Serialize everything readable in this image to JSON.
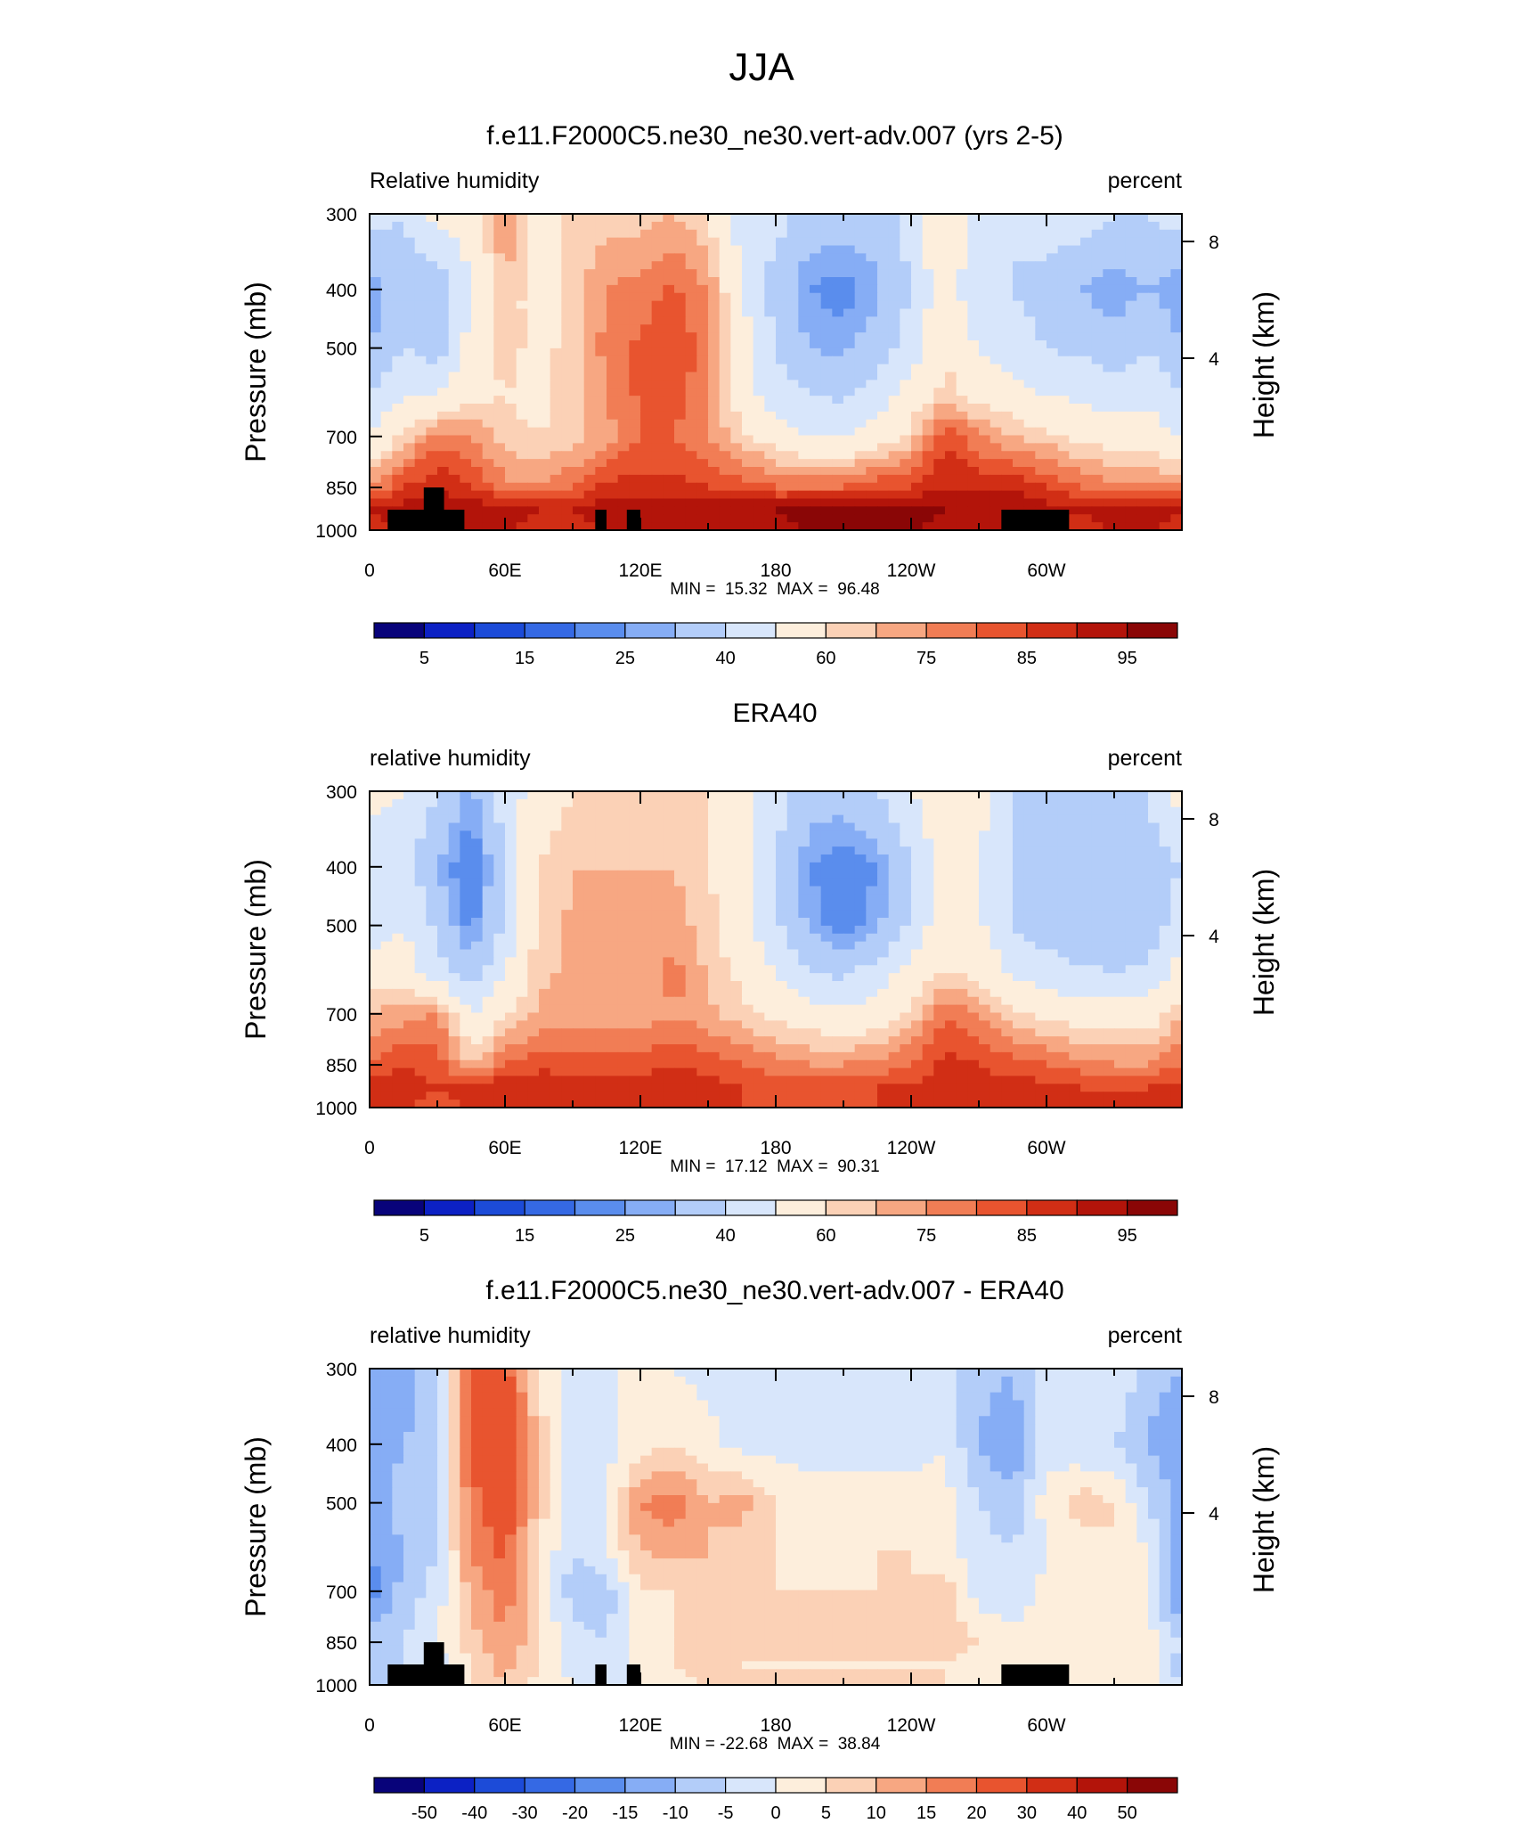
{
  "figure": {
    "title": "JJA"
  },
  "palettes": {
    "abs": [
      "#08037a",
      "#0c21c4",
      "#1c4bd8",
      "#3569e4",
      "#5a8ded",
      "#86adf5",
      "#b3cdf9",
      "#d8e6fb",
      "#fdeedc",
      "#fbd1b6",
      "#f7a782",
      "#f17d55",
      "#e8542f",
      "#d12e15",
      "#b3140a",
      "#8a0606"
    ],
    "diff": [
      "#08037a",
      "#0c21c4",
      "#1c4bd8",
      "#3569e4",
      "#5a8ded",
      "#86adf5",
      "#b3cdf9",
      "#d8e6fb",
      "#fdeedc",
      "#fbd1b6",
      "#f7a782",
      "#f17d55",
      "#e8542f",
      "#d12e15",
      "#b3140a",
      "#8a0606"
    ]
  },
  "chart_data": [
    {
      "type": "heatmap",
      "title": "f.e11.F2000C5.ne30_ne30.vert-adv.007 (yrs 2-5)",
      "left_label": "Relative humidity",
      "right_label": "percent",
      "ylabel": "Pressure (mb)",
      "y2label": "Height (km)",
      "ylim": [
        1000,
        300
      ],
      "y_ticks": [
        "300",
        "400",
        "500",
        "700",
        "850",
        "1000"
      ],
      "y_tick_values": [
        300,
        400,
        500,
        700,
        850,
        1000
      ],
      "y2_ticks": [
        "8",
        "4"
      ],
      "y2_tick_values_km": [
        8,
        4
      ],
      "x_ticks": [
        "0",
        "60E",
        "120E",
        "180",
        "120W",
        "60W"
      ],
      "x_tick_values": [
        0,
        60,
        120,
        180,
        240,
        300
      ],
      "xlim": [
        0,
        360
      ],
      "stats": "MIN =  15.32  MAX =  96.48",
      "min": 15.32,
      "max": 96.48,
      "colorbar_labels": [
        "5",
        "15",
        "25",
        "40",
        "60",
        "75",
        "85",
        "95"
      ],
      "levels": [
        5,
        10,
        15,
        20,
        25,
        30,
        40,
        50,
        60,
        65,
        70,
        75,
        80,
        85,
        90,
        95
      ],
      "palette": "abs",
      "has_topography": true,
      "grid_lons": [
        0,
        15,
        30,
        45,
        60,
        75,
        90,
        105,
        120,
        135,
        150,
        165,
        180,
        195,
        210,
        225,
        240,
        255,
        270,
        285,
        300,
        315,
        330,
        345,
        360
      ],
      "grid_levels": [
        300,
        400,
        500,
        600,
        700,
        850,
        925,
        1000
      ],
      "values": [
        [
          45,
          40,
          55,
          55,
          70,
          55,
          62,
          62,
          62,
          65,
          60,
          45,
          45,
          35,
          35,
          35,
          45,
          60,
          45,
          40,
          48,
          45,
          40,
          40,
          45
        ],
        [
          25,
          35,
          30,
          50,
          65,
          55,
          62,
          70,
          72,
          76,
          70,
          50,
          35,
          25,
          22,
          28,
          40,
          58,
          40,
          40,
          35,
          30,
          25,
          30,
          25
        ],
        [
          30,
          40,
          35,
          55,
          62,
          58,
          62,
          72,
          76,
          80,
          72,
          55,
          40,
          30,
          28,
          35,
          45,
          60,
          50,
          45,
          40,
          38,
          35,
          40,
          30
        ],
        [
          40,
          50,
          50,
          58,
          60,
          58,
          62,
          70,
          76,
          78,
          70,
          55,
          45,
          40,
          38,
          45,
          55,
          62,
          58,
          55,
          50,
          48,
          45,
          48,
          40
        ],
        [
          50,
          62,
          72,
          70,
          62,
          60,
          62,
          68,
          75,
          75,
          70,
          62,
          55,
          50,
          50,
          55,
          62,
          80,
          70,
          65,
          62,
          58,
          55,
          55,
          50
        ],
        [
          70,
          80,
          85,
          80,
          72,
          70,
          75,
          82,
          82,
          82,
          80,
          78,
          75,
          75,
          75,
          80,
          80,
          85,
          85,
          85,
          80,
          75,
          72,
          72,
          70
        ],
        [
          85,
          88,
          90,
          90,
          88,
          85,
          85,
          88,
          90,
          90,
          90,
          90,
          90,
          92,
          92,
          92,
          92,
          90,
          88,
          88,
          88,
          85,
          88,
          88,
          85
        ],
        [
          82,
          85,
          88,
          88,
          85,
          82,
          82,
          85,
          88,
          88,
          88,
          88,
          88,
          90,
          90,
          90,
          90,
          88,
          85,
          85,
          85,
          82,
          85,
          85,
          82
        ]
      ]
    },
    {
      "type": "heatmap",
      "title": "ERA40",
      "left_label": "relative humidity",
      "right_label": "percent",
      "ylabel": "Pressure (mb)",
      "y2label": "Height (km)",
      "ylim": [
        1000,
        300
      ],
      "y_ticks": [
        "300",
        "400",
        "500",
        "700",
        "850",
        "1000"
      ],
      "y_tick_values": [
        300,
        400,
        500,
        700,
        850,
        1000
      ],
      "y2_ticks": [
        "8",
        "4"
      ],
      "y2_tick_values_km": [
        8,
        4
      ],
      "x_ticks": [
        "0",
        "60E",
        "120E",
        "180",
        "120W",
        "60W"
      ],
      "x_tick_values": [
        0,
        60,
        120,
        180,
        240,
        300
      ],
      "xlim": [
        0,
        360
      ],
      "stats": "MIN =  17.12  MAX =  90.31",
      "min": 17.12,
      "max": 90.31,
      "colorbar_labels": [
        "5",
        "15",
        "25",
        "40",
        "60",
        "75",
        "85",
        "95"
      ],
      "levels": [
        5,
        10,
        15,
        20,
        25,
        30,
        40,
        50,
        60,
        65,
        70,
        75,
        80,
        85,
        90,
        95
      ],
      "palette": "abs",
      "has_topography": false,
      "grid_lons": [
        0,
        15,
        30,
        45,
        60,
        75,
        90,
        105,
        120,
        135,
        150,
        165,
        180,
        195,
        210,
        225,
        240,
        255,
        270,
        285,
        300,
        315,
        330,
        345,
        360
      ],
      "grid_levels": [
        300,
        400,
        500,
        600,
        700,
        850,
        925,
        1000
      ],
      "values": [
        [
          55,
          50,
          40,
          28,
          45,
          55,
          60,
          62,
          62,
          62,
          60,
          55,
          45,
          35,
          35,
          40,
          50,
          58,
          55,
          40,
          40,
          40,
          40,
          40,
          55
        ],
        [
          40,
          45,
          30,
          18,
          40,
          60,
          65,
          65,
          65,
          65,
          60,
          55,
          40,
          25,
          20,
          25,
          40,
          55,
          50,
          38,
          32,
          30,
          35,
          35,
          40
        ],
        [
          45,
          50,
          38,
          22,
          42,
          62,
          66,
          66,
          66,
          68,
          62,
          55,
          42,
          28,
          22,
          28,
          42,
          58,
          52,
          40,
          35,
          32,
          30,
          35,
          45
        ],
        [
          55,
          55,
          45,
          35,
          50,
          64,
          66,
          66,
          66,
          72,
          64,
          58,
          50,
          40,
          38,
          45,
          55,
          60,
          58,
          48,
          45,
          42,
          40,
          42,
          55
        ],
        [
          65,
          68,
          70,
          50,
          58,
          66,
          66,
          66,
          66,
          70,
          66,
          62,
          58,
          55,
          52,
          55,
          62,
          75,
          70,
          62,
          58,
          55,
          55,
          55,
          65
        ],
        [
          75,
          80,
          78,
          65,
          75,
          78,
          78,
          78,
          78,
          80,
          78,
          75,
          72,
          70,
          70,
          72,
          75,
          82,
          80,
          78,
          75,
          72,
          70,
          70,
          75
        ],
        [
          82,
          82,
          80,
          82,
          85,
          85,
          82,
          82,
          82,
          84,
          82,
          80,
          78,
          78,
          78,
          80,
          80,
          82,
          82,
          82,
          82,
          80,
          80,
          80,
          82
        ],
        [
          82,
          80,
          78,
          80,
          82,
          82,
          80,
          80,
          80,
          82,
          80,
          80,
          80,
          80,
          80,
          80,
          82,
          82,
          82,
          82,
          82,
          80,
          80,
          80,
          82
        ]
      ]
    },
    {
      "type": "heatmap",
      "title": "f.e11.F2000C5.ne30_ne30.vert-adv.007 - ERA40",
      "left_label": "relative humidity",
      "right_label": "percent",
      "ylabel": "Pressure (mb)",
      "y2label": "Height (km)",
      "ylim": [
        1000,
        300
      ],
      "y_ticks": [
        "300",
        "400",
        "500",
        "700",
        "850",
        "1000"
      ],
      "y_tick_values": [
        300,
        400,
        500,
        700,
        850,
        1000
      ],
      "y2_ticks": [
        "8",
        "4"
      ],
      "y2_tick_values_km": [
        8,
        4
      ],
      "x_ticks": [
        "0",
        "60E",
        "120E",
        "180",
        "120W",
        "60W"
      ],
      "x_tick_values": [
        0,
        60,
        120,
        180,
        240,
        300
      ],
      "xlim": [
        0,
        360
      ],
      "stats": "MIN = -22.68  MAX =  38.84",
      "min": -22.68,
      "max": 38.84,
      "colorbar_labels": [
        "-50",
        "-40",
        "-30",
        "-20",
        "-15",
        "-10",
        "-5",
        "0",
        "5",
        "10",
        "15",
        "20",
        "30",
        "40",
        "50"
      ],
      "levels": [
        -50,
        -40,
        -30,
        -20,
        -15,
        -10,
        -5,
        0,
        5,
        10,
        15,
        20,
        30,
        40,
        50
      ],
      "palette": "diff",
      "has_topography": true,
      "grid_lons": [
        0,
        15,
        30,
        45,
        60,
        75,
        90,
        105,
        120,
        135,
        150,
        165,
        180,
        195,
        210,
        225,
        240,
        255,
        270,
        285,
        300,
        315,
        330,
        345,
        360
      ],
      "grid_levels": [
        300,
        400,
        500,
        600,
        700,
        850,
        925,
        1000
      ],
      "values": [
        [
          -10,
          -12,
          -8,
          20,
          22,
          5,
          -5,
          0,
          0,
          0,
          -2,
          -5,
          -2,
          -2,
          -2,
          -3,
          -3,
          -3,
          -8,
          -10,
          0,
          0,
          0,
          -8,
          -10
        ],
        [
          -15,
          -10,
          -8,
          22,
          28,
          8,
          -5,
          -2,
          2,
          5,
          2,
          -2,
          -2,
          -2,
          -2,
          -3,
          -3,
          0,
          -10,
          -15,
          -2,
          -5,
          -5,
          -10,
          -15
        ],
        [
          -12,
          -8,
          -5,
          18,
          25,
          8,
          -5,
          0,
          15,
          18,
          10,
          12,
          5,
          2,
          2,
          3,
          3,
          2,
          -5,
          -8,
          2,
          8,
          5,
          -5,
          -12
        ],
        [
          -15,
          -10,
          -5,
          15,
          22,
          5,
          -5,
          0,
          10,
          12,
          10,
          8,
          5,
          3,
          3,
          5,
          5,
          2,
          -3,
          -5,
          0,
          2,
          5,
          0,
          -15
        ],
        [
          -18,
          -8,
          -3,
          12,
          18,
          5,
          -8,
          -8,
          5,
          5,
          8,
          8,
          5,
          5,
          5,
          5,
          5,
          8,
          -3,
          -5,
          2,
          3,
          3,
          0,
          -18
        ],
        [
          -5,
          -5,
          0,
          8,
          15,
          5,
          -3,
          -5,
          2,
          5,
          8,
          8,
          5,
          5,
          5,
          5,
          8,
          8,
          5,
          3,
          3,
          5,
          5,
          2,
          -5
        ],
        [
          -8,
          -5,
          -2,
          5,
          12,
          5,
          -2,
          -5,
          2,
          5,
          8,
          5,
          5,
          5,
          5,
          5,
          5,
          5,
          2,
          2,
          2,
          3,
          3,
          2,
          -8
        ],
        [
          -5,
          -5,
          -2,
          5,
          10,
          3,
          0,
          -3,
          2,
          3,
          5,
          5,
          5,
          5,
          5,
          5,
          5,
          5,
          2,
          2,
          2,
          2,
          2,
          2,
          -5
        ]
      ]
    }
  ]
}
